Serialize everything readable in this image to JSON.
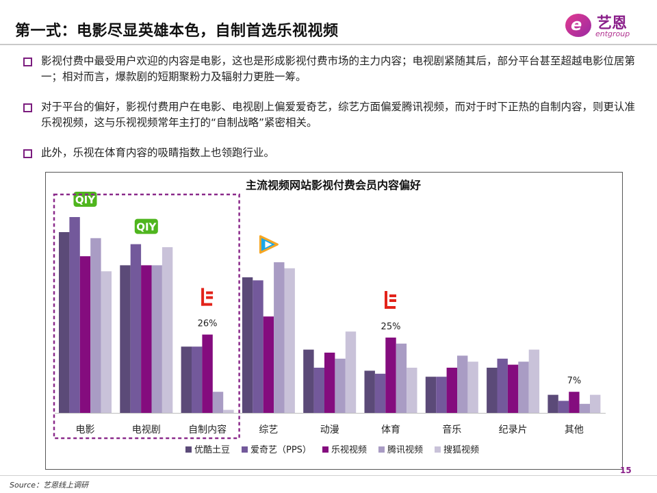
{
  "header": {
    "title": "第一式：电影尽显英雄本色，自制首选乐视视频"
  },
  "logo": {
    "name_cn": "艺恩",
    "name_en": "entgroup",
    "mark_letter": "e"
  },
  "bullets": [
    "影视付费中最受用户欢迎的内容是电影，这也是形成影视付费市场的主力内容；电视剧紧随其后，部分平台甚至超越电影位居第一；相对而言，爆款剧的短期聚粉力及辐射力更胜一筹。",
    "对于平台的偏好，影视付费用户在电影、电视剧上偏爱爱奇艺，综艺方面偏爱腾讯视频，而对于时下正热的自制内容，则更认准乐视视频，这与乐视视频常年主打的“自制战略”紧密相关。",
    "此外，乐视在体育内容的吸睛指数上也领跑行业。"
  ],
  "chart_data": {
    "type": "bar",
    "title": "主流视频网站影视付费会员内容偏好",
    "categories": [
      "电影",
      "电视剧",
      "自制内容",
      "综艺",
      "动漫",
      "体育",
      "音乐",
      "纪录片",
      "其他"
    ],
    "series": [
      {
        "name": "优酷土豆",
        "color": "#5b4a78",
        "values": [
          60,
          49,
          22,
          45,
          21,
          14,
          12,
          15,
          6
        ]
      },
      {
        "name": "爱奇艺（PPS）",
        "color": "#73599b",
        "values": [
          65,
          56,
          22,
          44,
          15,
          13,
          12,
          18,
          4
        ]
      },
      {
        "name": "乐视视频",
        "color": "#840c7e",
        "values": [
          52,
          49,
          26,
          32,
          20,
          25,
          15,
          16,
          7
        ]
      },
      {
        "name": "腾讯视频",
        "color": "#a99cc4",
        "values": [
          58,
          49,
          7,
          50,
          18,
          23,
          19,
          17,
          3
        ]
      },
      {
        "name": "搜狐视频",
        "color": "#c9c2d9",
        "values": [
          47,
          55,
          1,
          48,
          27,
          15,
          17,
          21,
          6
        ]
      }
    ],
    "data_labels": [
      {
        "category": "自制内容",
        "text": "26%"
      },
      {
        "category": "体育",
        "text": "25%"
      },
      {
        "category": "其他",
        "text": "7%"
      }
    ],
    "brand_icons": [
      {
        "category": "电影",
        "icon": "iqiyi-logo-icon",
        "text": "QIY"
      },
      {
        "category": "电视剧",
        "icon": "iqiyi-logo-icon",
        "text": "QIY"
      },
      {
        "category": "自制内容",
        "icon": "letv-logo-icon"
      },
      {
        "category": "综艺",
        "icon": "tencent-video-logo-icon"
      },
      {
        "category": "体育",
        "icon": "letv-logo-icon"
      }
    ],
    "highlight_group": [
      "电影",
      "电视剧",
      "自制内容"
    ],
    "highlight_color": "#8a2a8a",
    "ylim": [
      0,
      70
    ],
    "legend_position": "bottom",
    "grid": false
  },
  "footer": {
    "page_number": "15",
    "source": "Source：艺恩线上调研"
  }
}
